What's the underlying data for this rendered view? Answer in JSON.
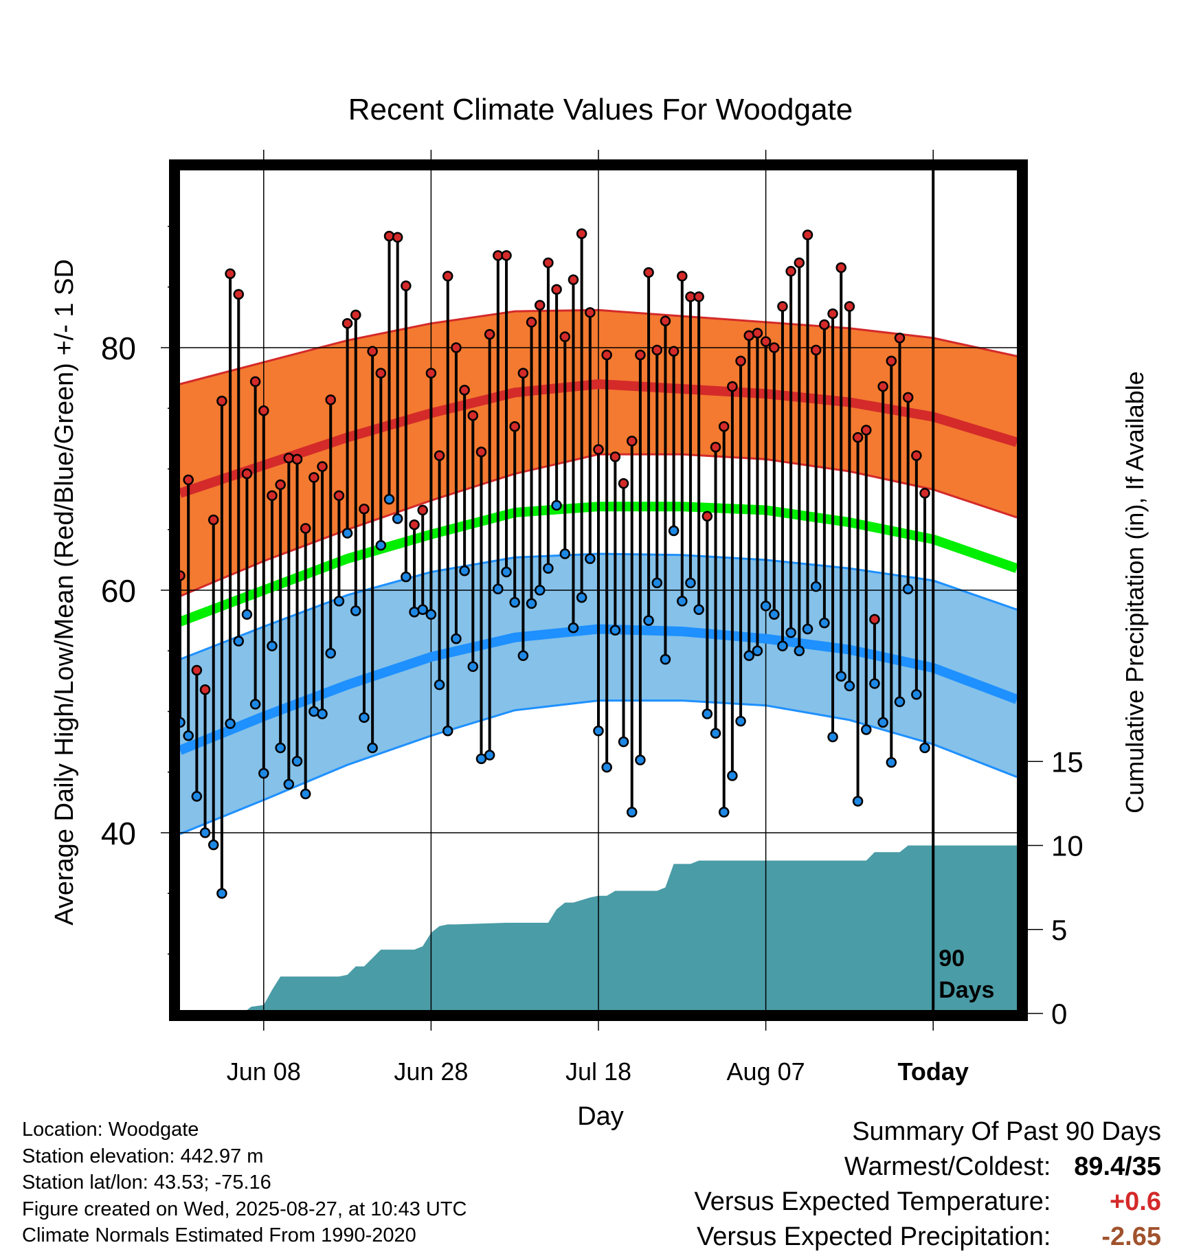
{
  "chart_data": {
    "type": "line",
    "title": "Recent Climate Values For Woodgate",
    "xlabel": "Day",
    "ylabel": "Average Daily High/Low/Mean (Red/Blue/Green) +/- 1 SD",
    "y2label": "Cumulative Precipitation (in), If Available",
    "x_tick_labels": [
      "Jun 08",
      "Jun 28",
      "Jul 18",
      "Aug 07",
      "Today"
    ],
    "x_tick_days": [
      10,
      30,
      50,
      70,
      90
    ],
    "x_range_days": [
      0,
      100
    ],
    "ylim": [
      22,
      93
    ],
    "y_ticks": [
      40,
      60,
      80
    ],
    "y2lim": [
      0,
      20
    ],
    "y2_ticks": [
      0,
      5,
      10,
      15
    ],
    "today_marker_label_1": "90",
    "today_marker_label_2": "Days",
    "grid": true,
    "colors": {
      "high_band": "#f37a30",
      "high_mean": "#d42a2a",
      "low_band": "#85c1e9",
      "low_mean": "#1e90ff",
      "mean_line": "#00ee00",
      "precip": "#4a9ca6",
      "high_dot": "#d42a2a",
      "low_dot": "#1e88e5"
    },
    "normal_high": {
      "day": [
        0,
        10,
        20,
        30,
        40,
        50,
        60,
        70,
        80,
        90,
        100
      ],
      "mean": [
        68.0,
        70.3,
        72.6,
        74.6,
        76.3,
        77.0,
        76.6,
        76.2,
        75.5,
        74.3,
        72.2
      ],
      "upper": [
        77.0,
        78.8,
        80.6,
        82.0,
        83.0,
        83.1,
        82.6,
        82.1,
        81.6,
        80.8,
        79.3
      ],
      "lower": [
        59.5,
        62.4,
        65.0,
        67.4,
        69.6,
        71.2,
        71.2,
        70.8,
        69.8,
        68.3,
        66.0
      ]
    },
    "normal_low": {
      "day": [
        0,
        10,
        20,
        30,
        40,
        50,
        60,
        70,
        80,
        90,
        100
      ],
      "mean": [
        46.8,
        49.6,
        52.2,
        54.5,
        56.1,
        56.8,
        56.6,
        56.0,
        55.1,
        53.6,
        51.0
      ],
      "upper": [
        54.3,
        57.0,
        59.6,
        61.5,
        62.7,
        63.0,
        62.9,
        62.5,
        61.8,
        60.8,
        58.4
      ],
      "lower": [
        39.9,
        42.7,
        45.6,
        48.0,
        50.1,
        50.9,
        50.9,
        50.5,
        49.3,
        47.3,
        44.6
      ]
    },
    "normal_mean": {
      "day": [
        0,
        10,
        20,
        30,
        40,
        50,
        60,
        70,
        80,
        90,
        100
      ],
      "value": [
        57.4,
        60.0,
        62.6,
        64.6,
        66.4,
        66.9,
        66.9,
        66.6,
        65.6,
        64.2,
        61.8
      ]
    },
    "precip_cumulative": {
      "day": [
        0,
        7.5,
        8.5,
        10,
        11,
        12,
        13,
        19,
        20,
        21,
        22,
        24,
        25,
        28,
        29,
        30,
        31,
        32,
        33,
        39,
        40,
        44,
        45,
        46,
        47,
        49,
        50,
        51,
        52,
        56,
        57,
        58,
        59,
        61,
        62,
        73,
        74,
        78,
        79,
        82,
        83,
        86,
        87,
        100
      ],
      "value": [
        0,
        0,
        0.4,
        0.5,
        1.4,
        2.2,
        2.2,
        2.2,
        2.3,
        2.8,
        2.8,
        3.8,
        3.8,
        3.8,
        4.0,
        4.8,
        5.2,
        5.3,
        5.3,
        5.4,
        5.4,
        5.4,
        6.2,
        6.6,
        6.6,
        6.9,
        7.0,
        7.0,
        7.3,
        7.3,
        7.3,
        7.5,
        8.9,
        8.9,
        9.1,
        9.1,
        9.1,
        9.1,
        9.1,
        9.1,
        9.6,
        9.6,
        10.0,
        10.0
      ]
    },
    "daily": {
      "day": [
        0,
        1,
        2,
        3,
        4,
        5,
        6,
        7,
        8,
        9,
        10,
        11,
        12,
        13,
        14,
        15,
        16,
        17,
        18,
        19,
        20,
        21,
        22,
        23,
        24,
        25,
        26,
        27,
        28,
        29,
        30,
        31,
        32,
        33,
        34,
        35,
        36,
        37,
        38,
        39,
        40,
        41,
        42,
        43,
        44,
        45,
        46,
        47,
        48,
        49,
        50,
        51,
        52,
        53,
        54,
        55,
        56,
        57,
        58,
        59,
        60,
        61,
        62,
        63,
        64,
        65,
        66,
        67,
        68,
        69,
        70,
        71,
        72,
        73,
        74,
        75,
        76,
        77,
        78,
        79,
        80,
        81,
        82,
        83,
        84,
        85,
        86,
        87,
        88,
        89
      ],
      "high": [
        61.2,
        69.1,
        53.4,
        51.8,
        65.8,
        75.6,
        86.1,
        84.4,
        69.6,
        77.2,
        74.8,
        67.8,
        68.7,
        70.9,
        70.8,
        65.1,
        69.3,
        70.2,
        75.7,
        67.8,
        82.0,
        82.7,
        66.7,
        79.7,
        77.9,
        89.2,
        89.1,
        85.1,
        65.4,
        66.6,
        77.9,
        71.1,
        85.9,
        80.0,
        76.5,
        74.4,
        71.4,
        81.1,
        87.6,
        87.6,
        73.5,
        77.9,
        82.1,
        83.5,
        87.0,
        84.8,
        80.9,
        85.6,
        89.4,
        82.9,
        71.6,
        79.4,
        71.0,
        68.8,
        72.3,
        79.4,
        86.2,
        79.8,
        82.2,
        79.7,
        85.9,
        84.2,
        84.2,
        66.1,
        71.8,
        73.5,
        76.8,
        78.9,
        81.0,
        81.2,
        80.5,
        80.0,
        83.4,
        86.3,
        87.0,
        89.3,
        79.8,
        81.9,
        82.8,
        86.6,
        83.4,
        72.6,
        73.2,
        57.6,
        76.8,
        78.9,
        80.8,
        75.9,
        71.1,
        68.0
      ],
      "low": [
        49.1,
        48.0,
        43.0,
        40.0,
        39.0,
        35.0,
        49.0,
        55.8,
        58.0,
        50.6,
        44.9,
        55.4,
        47.0,
        44.0,
        45.9,
        43.2,
        50.0,
        49.8,
        54.8,
        59.1,
        64.7,
        58.3,
        49.5,
        47.0,
        63.7,
        67.5,
        65.9,
        61.1,
        58.2,
        58.4,
        58.0,
        52.2,
        48.4,
        56.0,
        61.6,
        53.7,
        46.1,
        46.4,
        60.1,
        61.5,
        59.0,
        54.6,
        58.9,
        60.0,
        61.8,
        67.0,
        63.0,
        56.9,
        59.4,
        62.6,
        48.4,
        45.4,
        56.7,
        47.5,
        41.7,
        46.0,
        57.5,
        60.6,
        54.3,
        64.9,
        59.1,
        60.6,
        58.4,
        49.8,
        48.2,
        41.7,
        44.7,
        49.2,
        54.6,
        55.0,
        58.7,
        58.0,
        55.4,
        56.5,
        55.0,
        56.8,
        60.3,
        57.3,
        47.9,
        52.9,
        52.1,
        42.6,
        48.5,
        52.3,
        49.1,
        45.8,
        50.8,
        60.1,
        51.4,
        47.0
      ]
    }
  },
  "info": {
    "location": "Location: Woodgate",
    "elevation": "Station elevation: 442.97 m",
    "latlon": "Station lat/lon: 43.53; -75.16",
    "created": "Figure created on Wed, 2025-08-27, at 10:43 UTC",
    "normals": "Climate Normals Estimated From 1990-2020"
  },
  "summary": {
    "title": "Summary Of Past 90 Days",
    "warmest_label": "Warmest/Coldest:",
    "warmest_value": "89.4/35",
    "temp_label": "Versus Expected Temperature:",
    "temp_value": "+0.6",
    "temp_color": "#d42a2a",
    "precip_label": "Versus Expected Precipitation:",
    "precip_value": "-2.65",
    "precip_color": "#a0522d"
  }
}
